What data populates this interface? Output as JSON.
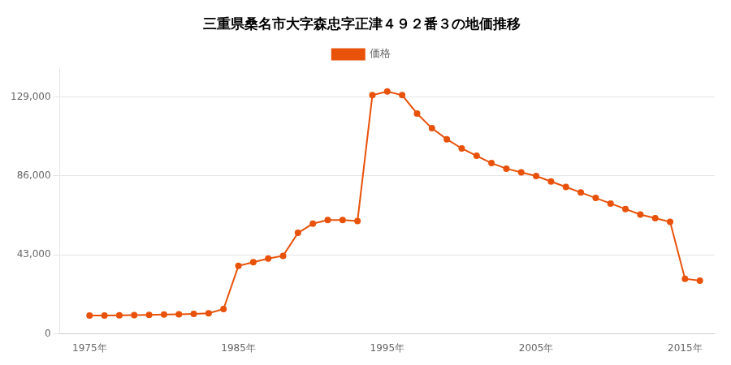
{
  "chart_data": {
    "type": "line",
    "title": "三重県桑名市大字森忠字正津４９２番３の地価推移",
    "x": [
      1975,
      1976,
      1977,
      1978,
      1979,
      1980,
      1981,
      1982,
      1983,
      1984,
      1985,
      1986,
      1987,
      1988,
      1989,
      1990,
      1991,
      1992,
      1993,
      1994,
      1995,
      1996,
      1997,
      1998,
      1999,
      2000,
      2001,
      2002,
      2003,
      2004,
      2005,
      2006,
      2007,
      2008,
      2009,
      2010,
      2011,
      2012,
      2013,
      2014,
      2015,
      2016
    ],
    "series": [
      {
        "name": "価格",
        "color": "#e8520a",
        "values": [
          10000,
          10000,
          10100,
          10200,
          10300,
          10500,
          10700,
          10900,
          11200,
          13500,
          37000,
          39000,
          41000,
          42500,
          55000,
          60000,
          62000,
          62000,
          61500,
          130000,
          132000,
          130000,
          120000,
          112000,
          106000,
          101000,
          97000,
          93000,
          90000,
          88000,
          86000,
          83000,
          80000,
          77000,
          74000,
          71000,
          68000,
          65000,
          63000,
          61000,
          30000,
          29000
        ]
      }
    ],
    "xlim": [
      1973,
      2017
    ],
    "xticks": [
      {
        "value": 1975,
        "label": "1975年"
      },
      {
        "value": 1985,
        "label": "1985年"
      },
      {
        "value": 1995,
        "label": "1995年"
      },
      {
        "value": 2005,
        "label": "2005年"
      },
      {
        "value": 2015,
        "label": "2015年"
      }
    ],
    "ylim": [
      0,
      145000
    ],
    "yticks": [
      0,
      {
        "value": 43000,
        "label": "43,000"
      },
      {
        "value": 86000,
        "label": "86,000"
      },
      {
        "value": 129000,
        "label": "129,000"
      }
    ],
    "grid": "y",
    "legend": "top",
    "marker": "circle"
  }
}
